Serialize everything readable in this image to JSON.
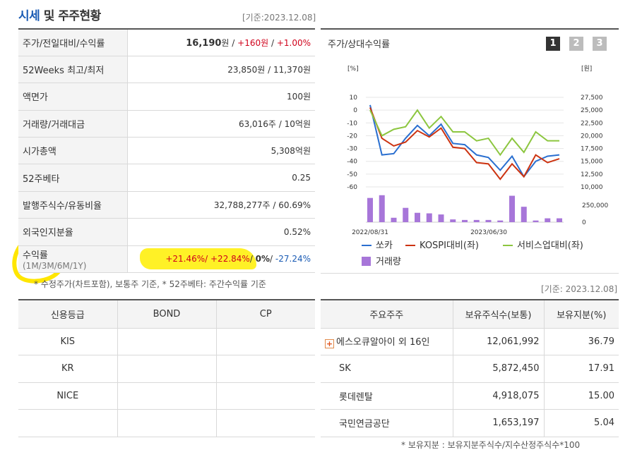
{
  "header": {
    "title_blue": "시세",
    "title_rest": " 및 주주현황",
    "ref_date": "[기준:2023.12.08]"
  },
  "price_table": {
    "rows": [
      {
        "label": "주가/전일대비/수익률",
        "price": "16,190",
        "unit": "원 / ",
        "change": "+160원",
        "sep": " / ",
        "rate": "+1.00%"
      },
      {
        "label": "52Weeks 최고/최저",
        "value": "23,850원 / 11,370원"
      },
      {
        "label": "액면가",
        "value": "100원"
      },
      {
        "label": "거래량/거래대금",
        "value": "63,016주 / 10억원"
      },
      {
        "label": "시가총액",
        "value": "5,308억원"
      },
      {
        "label": "52주베타",
        "value": "0.25"
      },
      {
        "label": "발행주식수/유동비율",
        "value": "32,788,277주 / 60.69%"
      },
      {
        "label": "외국인지분율",
        "value": "0.52%"
      },
      {
        "label": "수익률",
        "sublabel": "(1M/3M/6M/1Y)",
        "r1": "+21.46%",
        "s1": "/ ",
        "r2": "+22.84%",
        "s2": "/ ",
        "r3": "0%",
        "s3": "/ ",
        "r4": "-27.24%"
      }
    ],
    "note": "* 수정주가(차트포함), 보통주 기준, * 52주베타: 주간수익률 기준"
  },
  "chart_panel": {
    "title": "주가/상대수익률",
    "tabs": [
      "1",
      "2",
      "3"
    ],
    "active_tab": "1"
  },
  "chart_data": {
    "type": "line",
    "x_labels": [
      "2022/08/31",
      "2023/06/30"
    ],
    "left_axis_unit": "[%]",
    "right_axis_unit": "[원]",
    "left_ticks": [
      "10",
      "0",
      "-10",
      "-20",
      "-30",
      "-40",
      "-50",
      "-60"
    ],
    "right_ticks": [
      "27,500",
      "25,000",
      "22,500",
      "20,000",
      "17,500",
      "15,000",
      "12,500",
      "10,000"
    ],
    "volume_ticks": [
      "250,000",
      "0"
    ],
    "ylim": [
      -60,
      10
    ],
    "volume_max": 500000,
    "series": [
      {
        "name": "쏘카",
        "color": "#2a6fd0",
        "values": [
          4,
          -35,
          -34,
          -22,
          -12,
          -20,
          -11,
          -26,
          -27,
          -35,
          -37,
          -47,
          -36,
          -52,
          -40,
          -36,
          -35
        ]
      },
      {
        "name": "KOSPI대비(좌)",
        "color": "#cc3311",
        "values": [
          2,
          -22,
          -28,
          -25,
          -16,
          -21,
          -14,
          -29,
          -30,
          -41,
          -42,
          -54,
          -42,
          -52,
          -35,
          -41,
          -38
        ]
      },
      {
        "name": "서비스업대비(좌)",
        "color": "#8cc63f",
        "values": [
          0,
          -20,
          -15,
          -13,
          0,
          -14,
          -5,
          -17,
          -17,
          -24,
          -22,
          -35,
          -22,
          -33,
          -17,
          -24,
          -24
        ]
      }
    ],
    "volume": {
      "name": "거래량",
      "color": "#a776d9",
      "values": [
        440000,
        490000,
        80000,
        260000,
        170000,
        160000,
        140000,
        50000,
        40000,
        40000,
        40000,
        30000,
        480000,
        280000,
        30000,
        70000,
        70000
      ]
    }
  },
  "credit": {
    "headers": [
      "신용등급",
      "BOND",
      "CP"
    ],
    "rows": [
      [
        "KIS",
        "",
        ""
      ],
      [
        "KR",
        "",
        ""
      ],
      [
        "NICE",
        "",
        ""
      ],
      [
        "",
        "",
        ""
      ]
    ]
  },
  "holders": {
    "ref_date": "[기준: 2023.12.08]",
    "headers": [
      "주요주주",
      "보유주식수(보통)",
      "보유지분(%)"
    ],
    "rows": [
      {
        "name": "에스오큐알아이 외 16인",
        "shares": "12,061,992",
        "pct": "36.79"
      },
      {
        "name": "SK",
        "shares": "5,872,450",
        "pct": "17.91"
      },
      {
        "name": "롯데렌탈",
        "shares": "4,918,075",
        "pct": "15.00"
      },
      {
        "name": "국민연금공단",
        "shares": "1,653,197",
        "pct": "5.04"
      }
    ],
    "note": "* 보유지분 : 보유지분주식수/지수산정주식수*100"
  }
}
